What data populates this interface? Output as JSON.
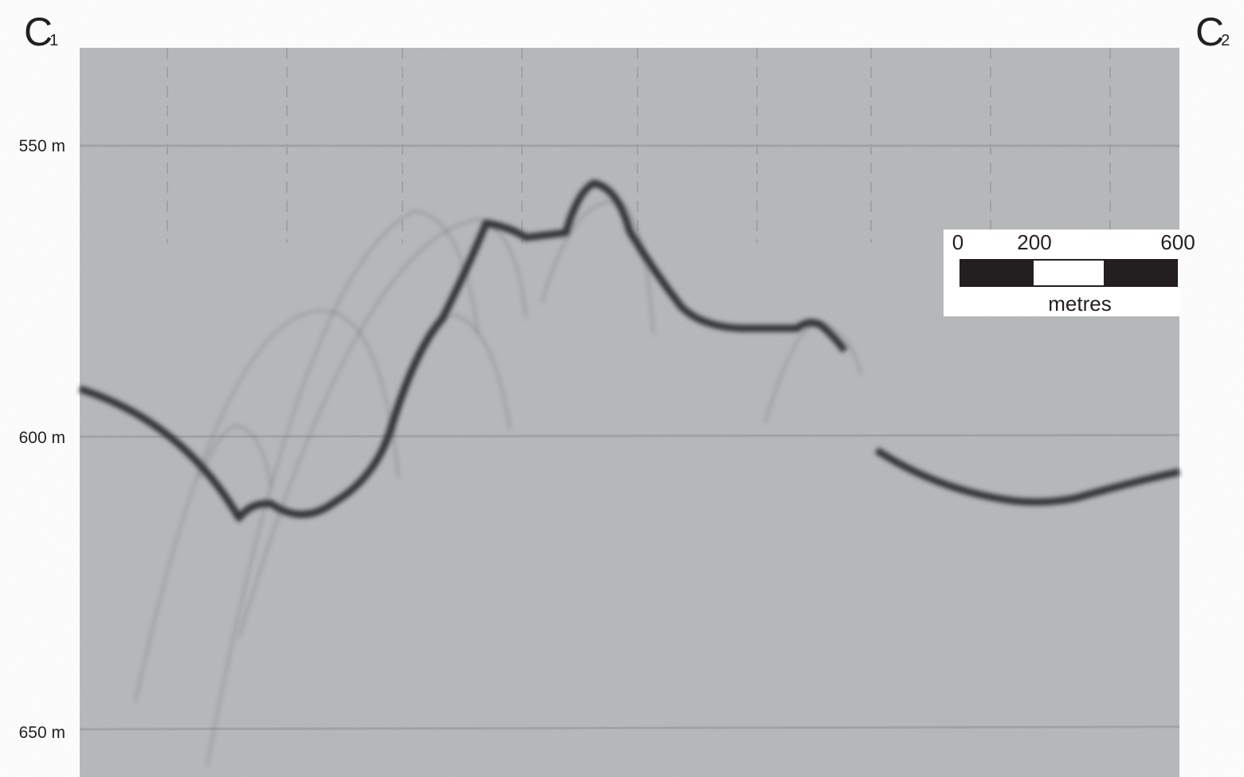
{
  "endpoints": {
    "left": {
      "letter": "C",
      "subscript": "1"
    },
    "right": {
      "letter": "C",
      "subscript": "2"
    }
  },
  "depth_labels": [
    "550 m",
    "600 m",
    "650 m"
  ],
  "scale_bar": {
    "ticks": [
      0,
      200,
      600
    ],
    "unit": "metres"
  }
}
